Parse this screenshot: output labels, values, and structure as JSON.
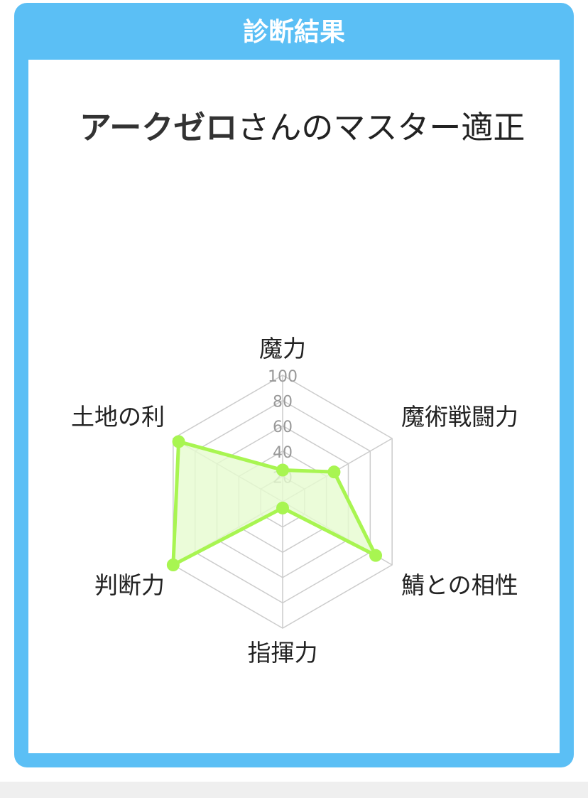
{
  "card": {
    "title": "診断結果"
  },
  "result": {
    "name": "アークゼロ",
    "suffix": "さんのマスター適正"
  },
  "colors": {
    "frame": "#5bbff5",
    "series": "#a8f551",
    "fill": "#e6fbcf",
    "grid": "#cccccc"
  },
  "chart_data": {
    "type": "radar",
    "categories": [
      "魔力",
      "魔術戦闘力",
      "鯖との相性",
      "指揮力",
      "判断力",
      "土地の利"
    ],
    "values": [
      25,
      47,
      85,
      5,
      100,
      95
    ],
    "rlim": [
      0,
      100
    ],
    "ticks": [
      "20",
      "40",
      "60",
      "80",
      "100"
    ],
    "grid": true
  }
}
